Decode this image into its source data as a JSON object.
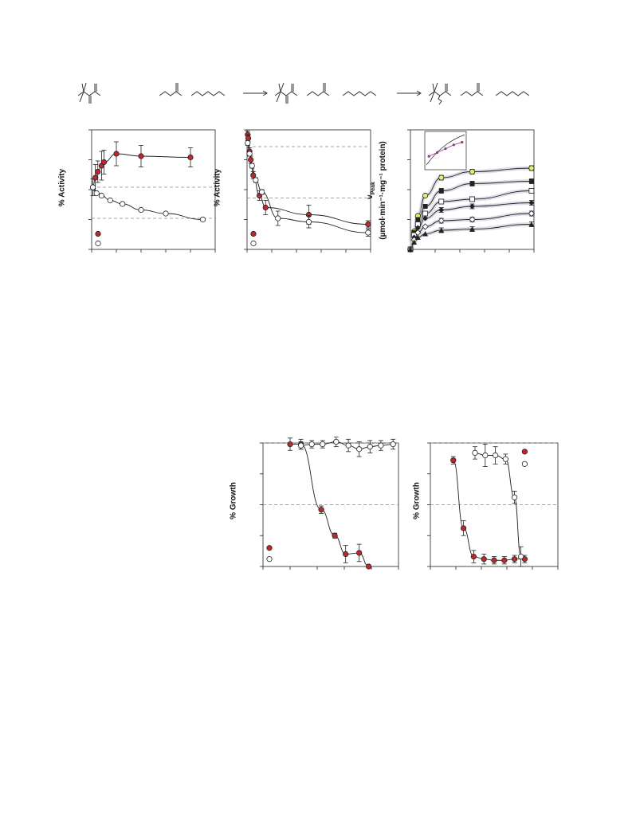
{
  "panels": {
    "p1": {
      "ylabel": "% Activity"
    },
    "p2": {
      "ylabel": "% Activity"
    },
    "p3": {
      "ylabel_line1": "v",
      "ylabel_sub": "Peak",
      "ylabel_line2": "(µmol·min⁻¹·mg⁻¹ protein)"
    },
    "p4": {
      "ylabel": "% Growth"
    },
    "p5": {
      "ylabel": "% Growth"
    }
  },
  "colors": {
    "red": "#c0272d",
    "ink": "#222222",
    "dash": "#888888"
  },
  "chart_data": [
    {
      "id": "p1",
      "type": "scatter",
      "title": "",
      "xlabel": "",
      "ylabel": "% Activity",
      "xlim": [
        0,
        10
      ],
      "ylim": [
        0,
        10
      ],
      "series": [
        {
          "marker": "filled-red",
          "x": [
            0.1,
            0.3,
            0.5,
            0.8,
            1.0,
            2.0,
            4.0,
            8.0
          ],
          "y": [
            5.2,
            6.0,
            6.5,
            7.0,
            7.3,
            8.0,
            7.8,
            7.7
          ],
          "err": [
            0.7,
            1.1,
            0.9,
            1.2,
            1.0,
            1.0,
            0.9,
            0.8
          ]
        },
        {
          "marker": "open",
          "x": [
            0.1,
            0.4,
            0.8,
            1.5,
            2.5,
            4.0,
            6.0,
            9.0
          ],
          "y": [
            5.2,
            4.7,
            4.5,
            4.1,
            3.8,
            3.3,
            3.0,
            2.5
          ],
          "err": [
            0,
            0,
            0,
            0,
            0,
            0,
            0,
            0
          ]
        }
      ],
      "legend_points": [
        {
          "marker": "filled-red",
          "y": 1.3
        },
        {
          "marker": "open",
          "y": 0.5
        }
      ],
      "dashed_y": [
        5.2,
        2.6
      ]
    },
    {
      "id": "p2",
      "type": "scatter",
      "title": "",
      "xlabel": "",
      "ylabel": "% Activity",
      "xlim": [
        0,
        10
      ],
      "ylim": [
        0,
        10
      ],
      "series": [
        {
          "marker": "filled-red",
          "x": [
            0.05,
            0.1,
            0.2,
            0.3,
            0.5,
            1.0,
            1.5,
            5.0,
            9.8
          ],
          "y": [
            9.6,
            9.3,
            8.2,
            7.5,
            6.2,
            4.5,
            3.5,
            2.9,
            2.1
          ],
          "err": [
            0.3,
            0.3,
            0.3,
            0.3,
            0.3,
            0.4,
            0.6,
            0.8,
            0.3
          ]
        },
        {
          "marker": "open",
          "x": [
            0.05,
            0.2,
            0.4,
            0.7,
            1.2,
            2.5,
            5.0,
            9.8
          ],
          "y": [
            8.9,
            8.0,
            7.0,
            5.8,
            4.8,
            2.6,
            2.3,
            1.4
          ],
          "err": [
            0.2,
            0.2,
            0.2,
            0.2,
            0.2,
            0.6,
            0.5,
            0.3
          ]
        }
      ],
      "legend_points": [
        {
          "marker": "filled-red",
          "y": 1.3
        },
        {
          "marker": "open",
          "y": 0.5
        }
      ],
      "dashed_y": [
        8.6,
        4.3
      ]
    },
    {
      "id": "p3",
      "type": "scatter",
      "title": "",
      "xlabel": "",
      "ylabel": "vPeak (µmol·min⁻¹·mg⁻¹ protein)",
      "xlim": [
        0,
        10
      ],
      "ylim": [
        0,
        10
      ],
      "series": [
        {
          "marker": "filled-yellow",
          "x": [
            0,
            0.3,
            0.6,
            1.2,
            2.5,
            5.0,
            9.8
          ],
          "y": [
            0,
            1.5,
            2.8,
            4.5,
            6.0,
            6.5,
            6.8
          ],
          "err": [
            0,
            0,
            0,
            0,
            0.2,
            0.2,
            0.2
          ]
        },
        {
          "marker": "filled-square",
          "x": [
            0,
            0.3,
            0.6,
            1.2,
            2.5,
            5.0,
            9.8
          ],
          "y": [
            0,
            1.4,
            2.5,
            3.6,
            4.9,
            5.5,
            5.7
          ],
          "err": [
            0,
            0,
            0,
            0,
            0.2,
            0.2,
            0.2
          ]
        },
        {
          "marker": "open-square",
          "x": [
            0,
            0.3,
            0.6,
            1.2,
            2.5,
            5.0,
            9.8
          ],
          "y": [
            0,
            1.2,
            2.1,
            3.0,
            4.0,
            4.2,
            4.9
          ],
          "err": [
            0,
            0,
            0,
            0,
            0.2,
            0.2,
            0.2
          ]
        },
        {
          "marker": "filled-diamond",
          "x": [
            0,
            0.3,
            0.6,
            1.2,
            2.5,
            5.0,
            9.8
          ],
          "y": [
            0,
            1.0,
            1.8,
            2.6,
            3.3,
            3.6,
            3.9
          ],
          "err": [
            0,
            0,
            0,
            0,
            0.2,
            0.2,
            0.2
          ]
        },
        {
          "marker": "open-diamond",
          "x": [
            0,
            0.3,
            0.6,
            1.2,
            2.5,
            5.0,
            9.8
          ],
          "y": [
            0,
            0.8,
            1.4,
            1.9,
            2.4,
            2.5,
            3.0
          ],
          "err": [
            0,
            0,
            0,
            0,
            0.2,
            0.2,
            0.2
          ]
        },
        {
          "marker": "filled-triangle",
          "x": [
            0,
            0.3,
            0.6,
            1.2,
            2.5,
            5.0,
            9.8
          ],
          "y": [
            0,
            0.6,
            1.0,
            1.3,
            1.6,
            1.7,
            2.1
          ],
          "err": [
            0,
            0,
            0,
            0,
            0.2,
            0.2,
            0.2
          ]
        }
      ],
      "inset": {
        "red_x": [
          0.1,
          0.3,
          0.5,
          0.7,
          0.9
        ],
        "red_y": [
          0.35,
          0.45,
          0.55,
          0.65,
          0.72
        ]
      }
    },
    {
      "id": "p4",
      "type": "scatter",
      "title": "",
      "xlabel": "",
      "ylabel": "% Growth",
      "xlim": [
        0,
        10
      ],
      "ylim": [
        0,
        10
      ],
      "series": [
        {
          "marker": "filled-red",
          "x": [
            2.0,
            2.8,
            4.3,
            5.3,
            6.1,
            7.1,
            7.8
          ],
          "y": [
            9.9,
            9.9,
            4.6,
            2.5,
            1.0,
            1.1,
            0.0
          ],
          "err": [
            0.5,
            0.4,
            0.3,
            0.2,
            0.7,
            0.7,
            0.1
          ]
        },
        {
          "marker": "open",
          "x": [
            2.8,
            3.6,
            4.4,
            5.4,
            6.3,
            7.1,
            7.9,
            8.7,
            9.6
          ],
          "y": [
            9.8,
            9.9,
            9.9,
            10.1,
            9.8,
            9.5,
            9.7,
            9.8,
            9.9
          ],
          "err": [
            0.3,
            0.3,
            0.3,
            0.4,
            0.5,
            0.6,
            0.5,
            0.4,
            0.4
          ]
        }
      ],
      "legend_points": [
        {
          "marker": "filled-red",
          "y": 1.5
        },
        {
          "marker": "open",
          "y": 0.6
        }
      ],
      "dashed_y": [
        10,
        5
      ]
    },
    {
      "id": "p5",
      "type": "scatter",
      "title": "",
      "xlabel": "",
      "ylabel": "% Growth",
      "xlim": [
        0,
        10
      ],
      "ylim": [
        0,
        10
      ],
      "series": [
        {
          "marker": "filled-red",
          "x": [
            1.8,
            2.6,
            3.4,
            4.2,
            5.0,
            5.8,
            6.6,
            7.4
          ],
          "y": [
            8.6,
            3.1,
            0.8,
            0.6,
            0.5,
            0.5,
            0.6,
            0.6
          ],
          "err": [
            0.3,
            0.6,
            0.5,
            0.4,
            0.3,
            0.3,
            0.3,
            0.3
          ]
        },
        {
          "marker": "open",
          "x": [
            3.5,
            4.3,
            5.1,
            5.9,
            6.6,
            7.1
          ],
          "y": [
            9.2,
            9.0,
            9.0,
            8.7,
            5.6,
            0.8
          ],
          "err": [
            0.5,
            0.9,
            0.7,
            0.4,
            0.5,
            0.8
          ]
        }
      ],
      "legend_points": [
        {
          "marker": "filled-red",
          "x": 7.4,
          "y": 9.3
        },
        {
          "marker": "open",
          "x": 7.4,
          "y": 8.3
        }
      ],
      "dashed_y": [
        10,
        5
      ]
    }
  ]
}
